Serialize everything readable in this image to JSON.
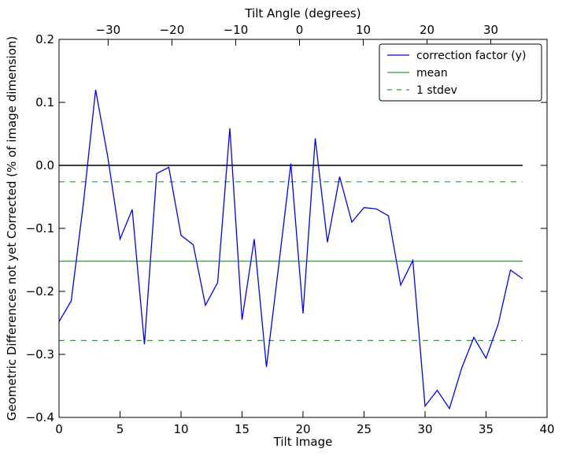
{
  "chart_data": {
    "type": "line",
    "xlabel": "Tilt Image",
    "ylabel": "Geometric Differences not yet Corrected (% of image dimension)",
    "x2label": "Tilt Angle (degrees)",
    "xlim": [
      0,
      40
    ],
    "ylim": [
      -0.4,
      0.2
    ],
    "x_ticks": [
      0,
      5,
      10,
      15,
      20,
      25,
      30,
      35,
      40
    ],
    "x_tick_labels": [
      "0",
      "5",
      "10",
      "15",
      "20",
      "25",
      "30",
      "35",
      "40"
    ],
    "y_ticks": [
      -0.4,
      -0.3,
      -0.2,
      -0.1,
      0.0,
      0.1,
      0.2
    ],
    "y_tick_labels": [
      "−0.4",
      "−0.3",
      "−0.2",
      "−0.1",
      "0.0",
      "0.1",
      "0.2"
    ],
    "top_ticks": [
      -30,
      -20,
      -10,
      0,
      10,
      20,
      30
    ],
    "top_tick_labels": [
      "−30",
      "−20",
      "−10",
      "0",
      "10",
      "20",
      "30"
    ],
    "top_axis_map": {
      "angle_at_tilt0": -37.7,
      "degrees_per_image": 1.913
    },
    "legend_position": "top-right",
    "grid": false,
    "series": [
      {
        "name": "correction factor (y)",
        "color": "#0000ff",
        "style": "solid",
        "x": [
          0,
          1,
          2,
          3,
          4,
          5,
          6,
          7,
          8,
          9,
          10,
          11,
          12,
          13,
          14,
          15,
          16,
          17,
          18,
          19,
          20,
          21,
          22,
          23,
          24,
          25,
          26,
          27,
          28,
          29,
          30,
          31,
          32,
          33,
          34,
          35,
          36,
          37,
          38
        ],
        "y": [
          -0.248,
          -0.215,
          -0.06,
          0.12,
          0.013,
          -0.117,
          -0.07,
          -0.284,
          -0.013,
          -0.003,
          -0.111,
          -0.126,
          -0.222,
          -0.186,
          0.059,
          -0.245,
          -0.117,
          -0.32,
          -0.16,
          0.003,
          -0.235,
          0.043,
          -0.122,
          -0.018,
          -0.09,
          -0.067,
          -0.069,
          -0.08,
          -0.19,
          -0.151,
          -0.382,
          -0.357,
          -0.386,
          -0.322,
          -0.273,
          -0.306,
          -0.252,
          -0.166,
          -0.18
        ]
      },
      {
        "name": "mean",
        "color": "#2ca02c",
        "style": "solid",
        "x": [
          0,
          38
        ],
        "y": [
          -0.152,
          -0.152
        ]
      },
      {
        "name": "1 stdev",
        "color": "#2ca02c",
        "style": "dashed",
        "x": [
          0,
          38
        ],
        "y": [
          -0.026,
          -0.026
        ],
        "x_lower": [
          0,
          38
        ],
        "y_lower": [
          -0.278,
          -0.278
        ]
      },
      {
        "name": "",
        "color": "#000000",
        "style": "solid",
        "x": [
          0,
          38
        ],
        "y": [
          0.0,
          0.0
        ]
      }
    ]
  }
}
